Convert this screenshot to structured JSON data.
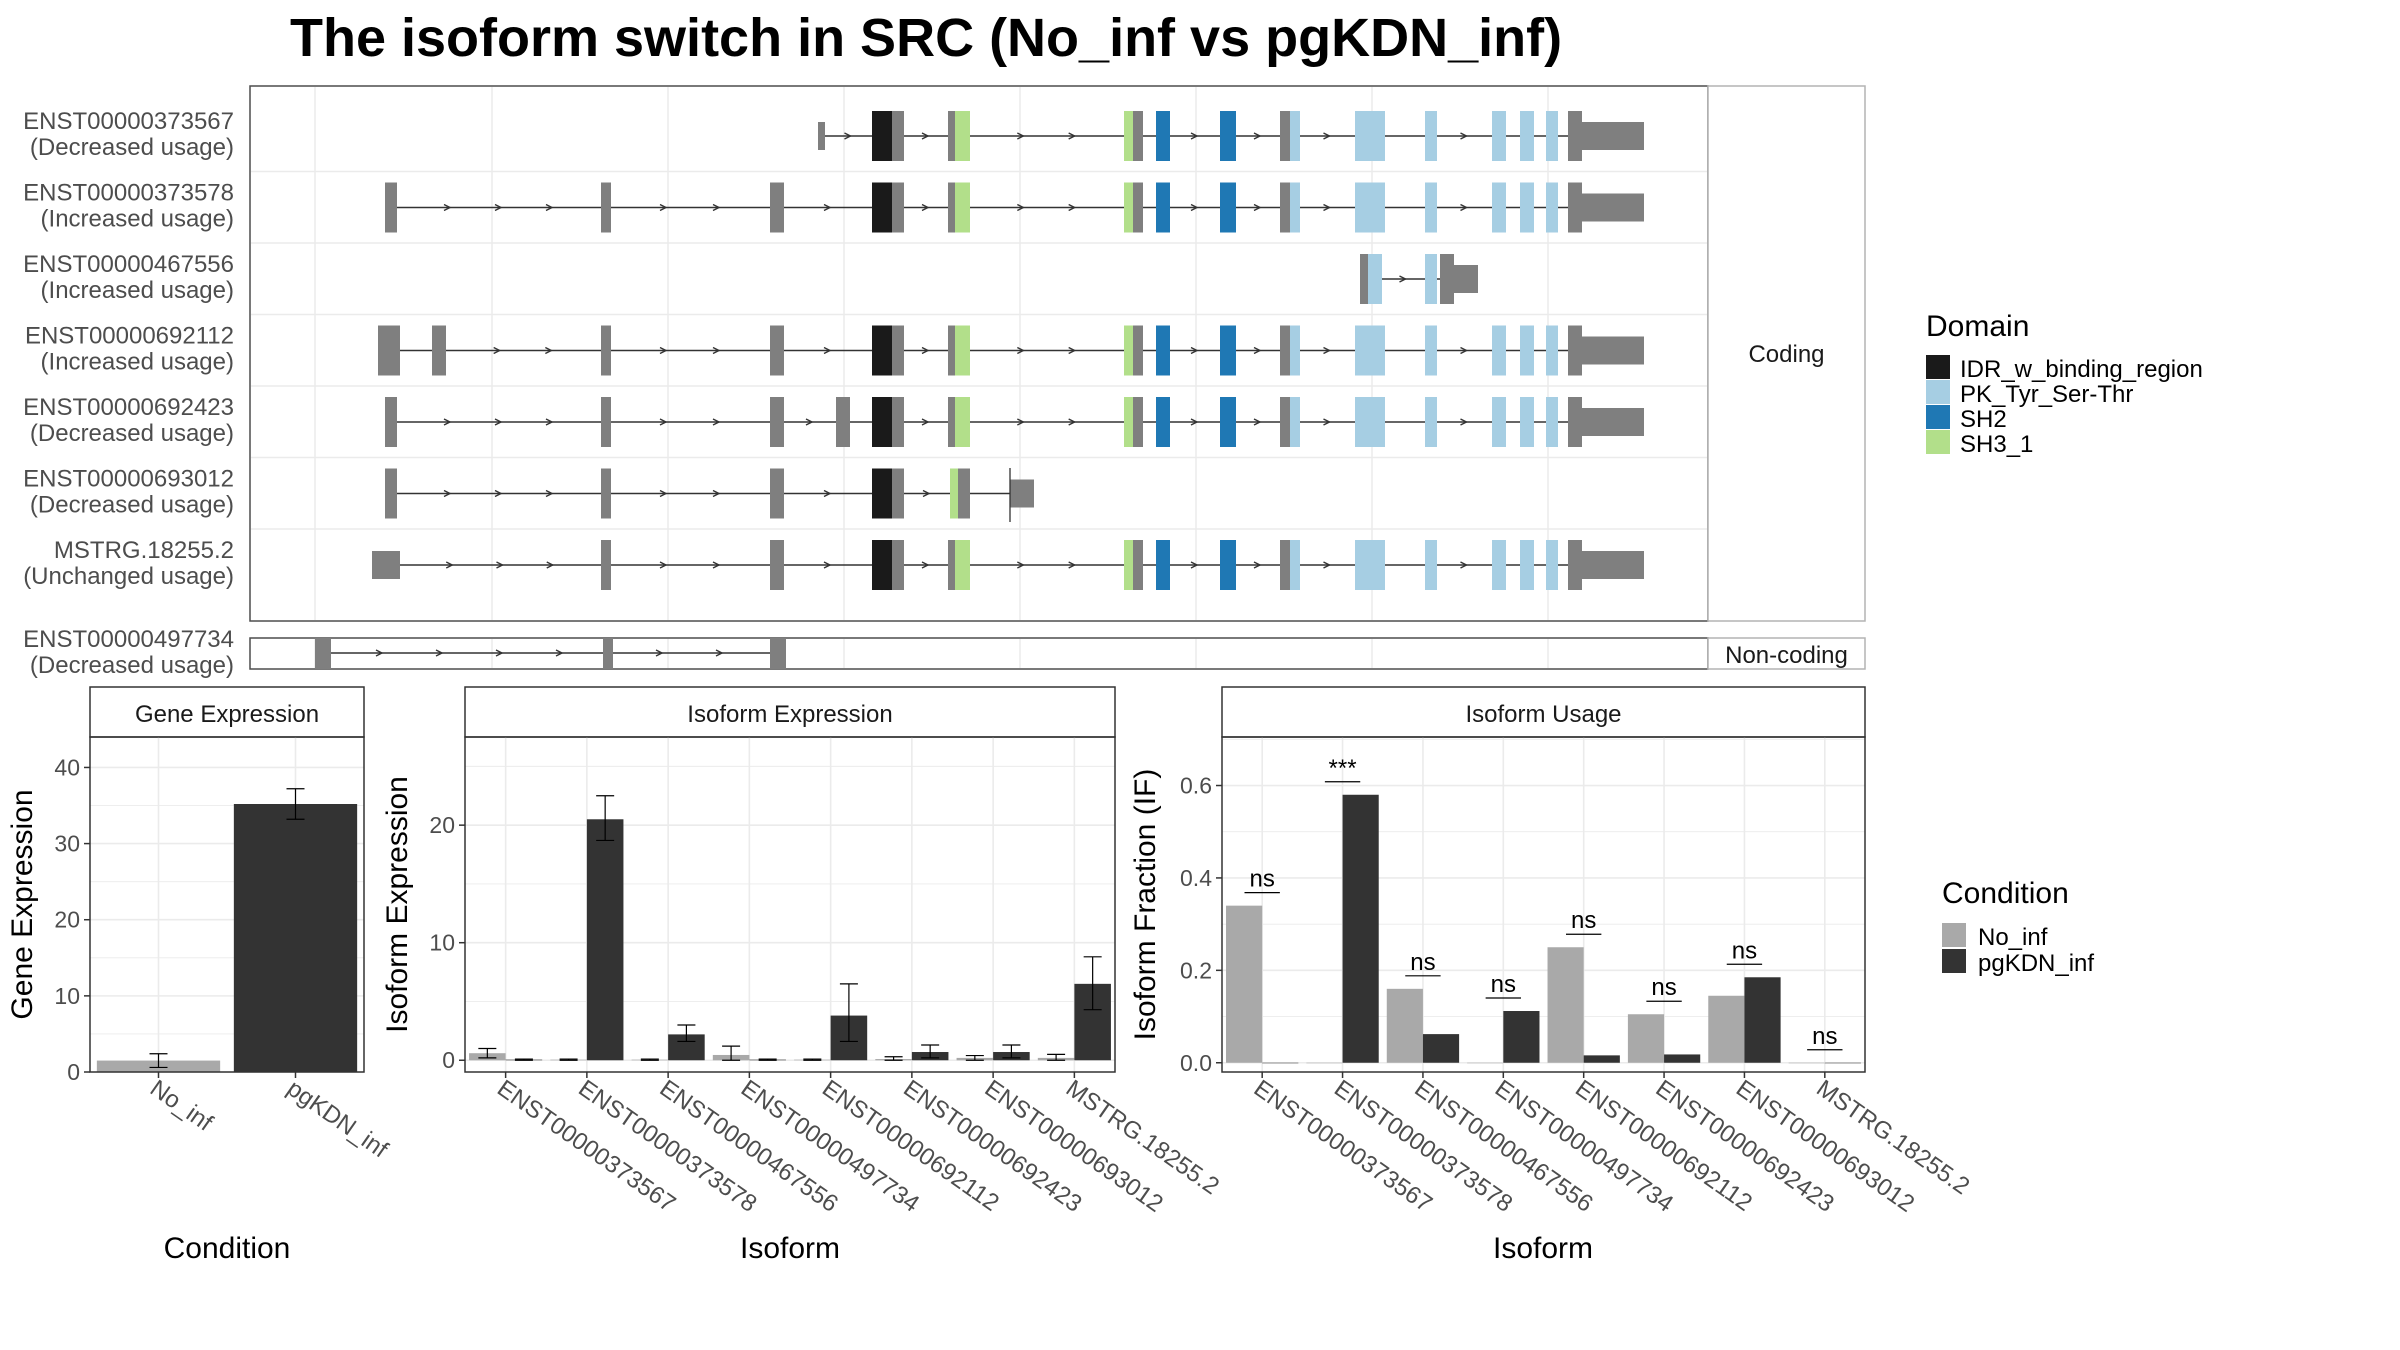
{
  "title": "The isoform switch in SRC (No_inf vs pgKDN_inf)",
  "colors": {
    "exon": "#7f7f7f",
    "IDR_w_binding_region": "#1a1a1a",
    "PK_Tyr_Ser-Thr": "#a6cee3",
    "SH2": "#1f78b4",
    "SH3_1": "#b2df8a",
    "No_inf": "#a9a9a9",
    "pgKDN_inf": "#333333"
  },
  "structure": {
    "coding_strip": "Coding",
    "noncoding_strip": "Non-coding",
    "coding": [
      {
        "id": "ENST00000373567",
        "usage": "(Decreased usage)"
      },
      {
        "id": "ENST00000373578",
        "usage": "(Increased usage)"
      },
      {
        "id": "ENST00000467556",
        "usage": "(Increased usage)"
      },
      {
        "id": "ENST00000692112",
        "usage": "(Increased usage)"
      },
      {
        "id": "ENST00000692423",
        "usage": "(Decreased usage)"
      },
      {
        "id": "ENST00000693012",
        "usage": "(Decreased usage)"
      },
      {
        "id": "MSTRG.18255.2",
        "usage": "(Unchanged usage)"
      }
    ],
    "noncoding": [
      {
        "id": "ENST00000497734",
        "usage": "(Decreased usage)"
      }
    ]
  },
  "domain_legend": {
    "title": "Domain",
    "items": [
      "IDR_w_binding_region",
      "PK_Tyr_Ser-Thr",
      "SH2",
      "SH3_1"
    ]
  },
  "condition_legend": {
    "title": "Condition",
    "items": [
      "No_inf",
      "pgKDN_inf"
    ]
  },
  "chart_data": [
    {
      "type": "bar",
      "panel_title": "Gene Expression",
      "categories": [
        "No_inf",
        "pgKDN_inf"
      ],
      "values": [
        1.5,
        35.2
      ],
      "error_low": [
        0.6,
        33.2
      ],
      "error_high": [
        2.4,
        37.2
      ],
      "ylim": [
        0,
        44
      ],
      "yticks": [
        0,
        10,
        20,
        30,
        40
      ],
      "xlabel": "Condition",
      "ylabel": "Gene Expression"
    },
    {
      "type": "bar",
      "panel_title": "Isoform Expression",
      "categories": [
        "ENST00000373567",
        "ENST00000373578",
        "ENST00000467556",
        "ENST00000497734",
        "ENST00000692112",
        "ENST00000692423",
        "ENST00000693012",
        "MSTRG.18255.2"
      ],
      "series": [
        {
          "name": "No_inf",
          "values": [
            0.6,
            0.05,
            0.05,
            0.45,
            0.05,
            0.1,
            0.2,
            0.2
          ],
          "error_low": [
            0.2,
            0.0,
            0.0,
            0.0,
            0.0,
            0.0,
            0.0,
            0.0
          ],
          "error_high": [
            1.0,
            0.1,
            0.1,
            1.2,
            0.1,
            0.3,
            0.4,
            0.5
          ]
        },
        {
          "name": "pgKDN_inf",
          "values": [
            0.05,
            20.5,
            2.2,
            0.05,
            3.8,
            0.7,
            0.7,
            6.5
          ],
          "error_low": [
            0.0,
            18.7,
            1.6,
            0.0,
            1.6,
            0.2,
            0.2,
            4.3
          ],
          "error_high": [
            0.1,
            22.5,
            3.0,
            0.1,
            6.5,
            1.3,
            1.3,
            8.8
          ]
        }
      ],
      "ylim": [
        -1,
        27.5
      ],
      "yticks": [
        0,
        10,
        20
      ],
      "xlabel": "Isoform",
      "ylabel": "Isoform Expression"
    },
    {
      "type": "bar",
      "panel_title": "Isoform Usage",
      "categories": [
        "ENST00000373567",
        "ENST00000373578",
        "ENST00000467556",
        "ENST00000497734",
        "ENST00000692112",
        "ENST00000692423",
        "ENST00000693012",
        "MSTRG.18255.2"
      ],
      "series": [
        {
          "name": "No_inf",
          "values": [
            0.34,
            0.0,
            0.16,
            0.0,
            0.25,
            0.105,
            0.145,
            0.0
          ]
        },
        {
          "name": "pgKDN_inf",
          "values": [
            0.0,
            0.58,
            0.062,
            0.112,
            0.016,
            0.018,
            0.185,
            0.0
          ]
        }
      ],
      "annotations": [
        "ns",
        "***",
        "ns",
        "ns",
        "ns",
        "ns",
        "ns",
        "ns"
      ],
      "ylim": [
        -0.02,
        0.705
      ],
      "yticks": [
        "0.0",
        "0.2",
        "0.4",
        "0.6"
      ],
      "xlabel": "Isoform",
      "ylabel": "Isoform Fraction (IF)"
    }
  ]
}
